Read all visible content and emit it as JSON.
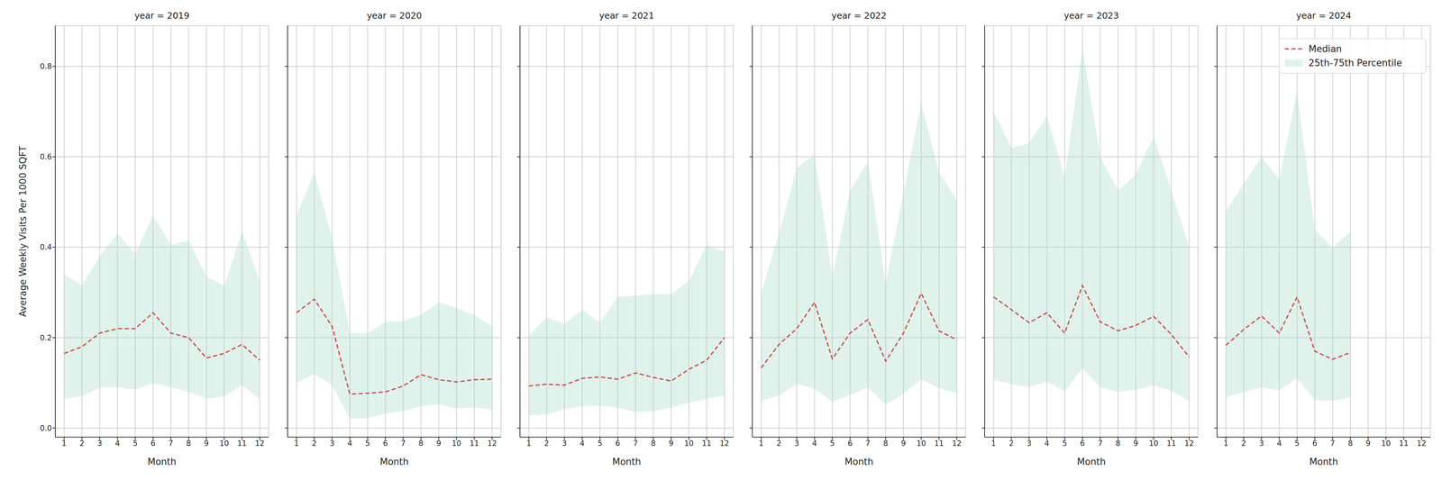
{
  "chart_data": [
    {
      "type": "line",
      "title": "year = 2019",
      "xlabel": "Month",
      "ylabel": "Average Weekly Visits Per 1000 SQFT",
      "x": [
        1,
        2,
        3,
        4,
        5,
        6,
        7,
        8,
        9,
        10,
        11,
        12
      ],
      "xlim": [
        0.5,
        12.5
      ],
      "xticks": [
        1,
        2,
        3,
        4,
        5,
        6,
        7,
        8,
        9,
        10,
        11,
        12
      ],
      "ylim": [
        -0.02,
        0.89
      ],
      "yticks": [
        {
          "value": 0,
          "label": "0.0"
        },
        0.2,
        0.4,
        0.6,
        0.8
      ],
      "grid": true,
      "series": [
        {
          "name": "Median",
          "type": "line",
          "color": "#c44e52",
          "line_style": "dashed",
          "values": [
            0.165,
            0.18,
            0.21,
            0.22,
            0.22,
            0.255,
            0.21,
            0.2,
            0.155,
            0.165,
            0.185,
            0.15
          ]
        },
        {
          "name": "25th-75th Percentile",
          "type": "area",
          "color": "#a6dbc6",
          "lower": [
            0.065,
            0.07,
            0.09,
            0.09,
            0.085,
            0.1,
            0.09,
            0.08,
            0.065,
            0.07,
            0.095,
            0.065
          ],
          "upper": [
            0.34,
            0.315,
            0.38,
            0.43,
            0.385,
            0.47,
            0.405,
            0.415,
            0.335,
            0.315,
            0.435,
            0.325
          ]
        }
      ]
    },
    {
      "type": "line",
      "title": "year = 2020",
      "xlabel": "Month",
      "tick_labels": "x",
      "x": [
        1,
        2,
        3,
        4,
        5,
        6,
        7,
        8,
        9,
        10,
        11,
        12
      ],
      "xlim": [
        0.5,
        12.5
      ],
      "xticks": [
        1,
        2,
        3,
        4,
        5,
        6,
        7,
        8,
        9,
        10,
        11,
        12
      ],
      "ylim": [
        -0.02,
        0.89
      ],
      "yticks": [
        {
          "value": 0,
          "label": "0.0"
        },
        0.2,
        0.4,
        0.6,
        0.8
      ],
      "grid": true,
      "series": [
        {
          "name": "Median",
          "type": "line",
          "color": "#c44e52",
          "line_style": "dashed",
          "values": [
            0.255,
            0.285,
            0.225,
            0.075,
            0.077,
            0.08,
            0.093,
            0.118,
            0.107,
            0.102,
            0.107,
            0.108
          ]
        },
        {
          "name": "25th-75th Percentile",
          "type": "area",
          "color": "#a6dbc6",
          "lower": [
            0.1,
            0.12,
            0.095,
            0.02,
            0.022,
            0.032,
            0.038,
            0.048,
            0.052,
            0.043,
            0.046,
            0.04
          ],
          "upper": [
            0.47,
            0.565,
            0.42,
            0.21,
            0.21,
            0.235,
            0.237,
            0.25,
            0.278,
            0.265,
            0.25,
            0.225
          ]
        }
      ]
    },
    {
      "type": "line",
      "title": "year = 2021",
      "xlabel": "Month",
      "tick_labels": "x",
      "x": [
        1,
        2,
        3,
        4,
        5,
        6,
        7,
        8,
        9,
        10,
        11,
        12
      ],
      "xlim": [
        0.5,
        12.5
      ],
      "xticks": [
        1,
        2,
        3,
        4,
        5,
        6,
        7,
        8,
        9,
        10,
        11,
        12
      ],
      "ylim": [
        -0.02,
        0.89
      ],
      "yticks": [
        {
          "value": 0,
          "label": "0.0"
        },
        0.2,
        0.4,
        0.6,
        0.8
      ],
      "grid": true,
      "series": [
        {
          "name": "Median",
          "type": "line",
          "color": "#c44e52",
          "line_style": "dashed",
          "values": [
            0.093,
            0.097,
            0.095,
            0.11,
            0.113,
            0.108,
            0.122,
            0.112,
            0.104,
            0.13,
            0.15,
            0.2
          ]
        },
        {
          "name": "25th-75th Percentile",
          "type": "area",
          "color": "#a6dbc6",
          "lower": [
            0.028,
            0.03,
            0.042,
            0.048,
            0.05,
            0.045,
            0.035,
            0.038,
            0.045,
            0.056,
            0.065,
            0.072
          ],
          "upper": [
            0.205,
            0.245,
            0.23,
            0.262,
            0.233,
            0.29,
            0.293,
            0.296,
            0.296,
            0.325,
            0.405,
            0.39
          ]
        }
      ]
    },
    {
      "type": "line",
      "title": "year = 2022",
      "xlabel": "Month",
      "tick_labels": "x",
      "x": [
        1,
        2,
        3,
        4,
        5,
        6,
        7,
        8,
        9,
        10,
        11,
        12
      ],
      "xlim": [
        0.5,
        12.5
      ],
      "xticks": [
        1,
        2,
        3,
        4,
        5,
        6,
        7,
        8,
        9,
        10,
        11,
        12
      ],
      "ylim": [
        -0.02,
        0.89
      ],
      "yticks": [
        {
          "value": 0,
          "label": "0.0"
        },
        0.2,
        0.4,
        0.6,
        0.8
      ],
      "grid": true,
      "series": [
        {
          "name": "Median",
          "type": "line",
          "color": "#c44e52",
          "line_style": "dashed",
          "values": [
            0.133,
            0.185,
            0.22,
            0.278,
            0.153,
            0.21,
            0.24,
            0.148,
            0.21,
            0.298,
            0.215,
            0.195
          ]
        },
        {
          "name": "25th-75th Percentile",
          "type": "area",
          "color": "#a6dbc6",
          "lower": [
            0.06,
            0.072,
            0.098,
            0.087,
            0.058,
            0.073,
            0.09,
            0.052,
            0.075,
            0.108,
            0.088,
            0.077
          ],
          "upper": [
            0.3,
            0.43,
            0.575,
            0.605,
            0.335,
            0.525,
            0.59,
            0.32,
            0.52,
            0.72,
            0.565,
            0.505
          ]
        }
      ]
    },
    {
      "type": "line",
      "title": "year = 2023",
      "xlabel": "Month",
      "tick_labels": "x",
      "x": [
        1,
        2,
        3,
        4,
        5,
        6,
        7,
        8,
        9,
        10,
        11,
        12
      ],
      "xlim": [
        0.5,
        12.5
      ],
      "xticks": [
        1,
        2,
        3,
        4,
        5,
        6,
        7,
        8,
        9,
        10,
        11,
        12
      ],
      "ylim": [
        -0.02,
        0.89
      ],
      "yticks": [
        {
          "value": 0,
          "label": "0.0"
        },
        0.2,
        0.4,
        0.6,
        0.8
      ],
      "grid": true,
      "series": [
        {
          "name": "Median",
          "type": "line",
          "color": "#c44e52",
          "line_style": "dashed",
          "values": [
            0.29,
            0.262,
            0.233,
            0.255,
            0.21,
            0.315,
            0.235,
            0.215,
            0.227,
            0.247,
            0.207,
            0.157
          ]
        },
        {
          "name": "25th-75th Percentile",
          "type": "area",
          "color": "#a6dbc6",
          "lower": [
            0.108,
            0.097,
            0.09,
            0.103,
            0.082,
            0.132,
            0.09,
            0.08,
            0.085,
            0.095,
            0.082,
            0.06
          ],
          "upper": [
            0.7,
            0.62,
            0.63,
            0.69,
            0.555,
            0.84,
            0.6,
            0.525,
            0.56,
            0.645,
            0.525,
            0.4
          ]
        }
      ]
    },
    {
      "type": "line",
      "title": "year = 2024",
      "xlabel": "Month",
      "tick_labels": "x",
      "legend": "upper right",
      "x": [
        1,
        2,
        3,
        4,
        5,
        6,
        7,
        8,
        9,
        10,
        11,
        12
      ],
      "xlim": [
        0.5,
        12.5
      ],
      "xticks": [
        1,
        2,
        3,
        4,
        5,
        6,
        7,
        8,
        9,
        10,
        11,
        12
      ],
      "ylim": [
        -0.02,
        0.89
      ],
      "yticks": [
        {
          "value": 0,
          "label": "0.0"
        },
        0.2,
        0.4,
        0.6,
        0.8
      ],
      "grid": true,
      "series": [
        {
          "name": "Median",
          "type": "line",
          "color": "#c44e52",
          "line_style": "dashed",
          "values": [
            0.183,
            0.218,
            0.248,
            0.21,
            0.29,
            0.17,
            0.152,
            0.167,
            null,
            null,
            null,
            null
          ]
        },
        {
          "name": "25th-75th Percentile",
          "type": "area",
          "color": "#a6dbc6",
          "lower": [
            0.068,
            0.08,
            0.09,
            0.083,
            0.11,
            0.062,
            0.06,
            0.068,
            null,
            null,
            null,
            null
          ],
          "upper": [
            0.48,
            0.54,
            0.6,
            0.55,
            0.745,
            0.44,
            0.398,
            0.435,
            null,
            null,
            null,
            null
          ]
        }
      ]
    }
  ]
}
